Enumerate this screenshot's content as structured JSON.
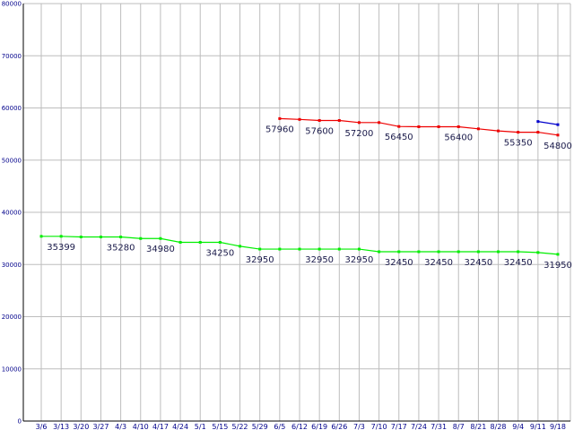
{
  "chart_data": {
    "type": "line",
    "title": "",
    "xlabel": "",
    "ylabel": "",
    "ylim": [
      0,
      80000
    ],
    "yticks": [
      0,
      10000,
      20000,
      30000,
      40000,
      50000,
      60000,
      70000,
      80000
    ],
    "grid": true,
    "categories": [
      "3/6",
      "3/13",
      "3/20",
      "3/27",
      "4/3",
      "4/10",
      "4/17",
      "4/24",
      "5/1",
      "5/15",
      "5/22",
      "5/29",
      "6/5",
      "6/12",
      "6/19",
      "6/26",
      "7/3",
      "7/10",
      "7/17",
      "7/24",
      "7/31",
      "8/7",
      "8/21",
      "8/28",
      "9/4",
      "9/11",
      "9/18"
    ],
    "series": [
      {
        "name": "",
        "color": "#00ee00",
        "values": [
          35399,
          35399,
          35280,
          35280,
          35280,
          34980,
          34980,
          34250,
          34250,
          34250,
          33500,
          32950,
          32950,
          32950,
          32950,
          32950,
          32950,
          32450,
          32450,
          32450,
          32450,
          32450,
          32450,
          32450,
          32450,
          32300,
          31950
        ],
        "labels": [
          {
            "i": 1,
            "text": "35399"
          },
          {
            "i": 4,
            "text": "35280"
          },
          {
            "i": 6,
            "text": "34980"
          },
          {
            "i": 9,
            "text": "34250"
          },
          {
            "i": 11,
            "text": "32950"
          },
          {
            "i": 14,
            "text": "32950"
          },
          {
            "i": 16,
            "text": "32950"
          },
          {
            "i": 18,
            "text": "32450"
          },
          {
            "i": 20,
            "text": "32450"
          },
          {
            "i": 22,
            "text": "32450"
          },
          {
            "i": 24,
            "text": "32450"
          },
          {
            "i": 26,
            "text": "31950"
          }
        ]
      },
      {
        "name": "",
        "color": "#ee0000",
        "values": [
          null,
          null,
          null,
          null,
          null,
          null,
          null,
          null,
          null,
          null,
          null,
          null,
          57960,
          57800,
          57600,
          57600,
          57200,
          57200,
          56450,
          56400,
          56400,
          56400,
          56000,
          55600,
          55350,
          55350,
          54800
        ],
        "labels": [
          {
            "i": 12,
            "text": "57960"
          },
          {
            "i": 14,
            "text": "57600"
          },
          {
            "i": 16,
            "text": "57200"
          },
          {
            "i": 18,
            "text": "56450"
          },
          {
            "i": 21,
            "text": "56400"
          },
          {
            "i": 24,
            "text": "55350"
          },
          {
            "i": 26,
            "text": "54800"
          }
        ]
      },
      {
        "name": "",
        "color": "#0000cc",
        "values": [
          null,
          null,
          null,
          null,
          null,
          null,
          null,
          null,
          null,
          null,
          null,
          null,
          null,
          null,
          null,
          null,
          null,
          null,
          null,
          null,
          null,
          null,
          null,
          null,
          null,
          57400,
          56800
        ],
        "labels": []
      }
    ]
  }
}
